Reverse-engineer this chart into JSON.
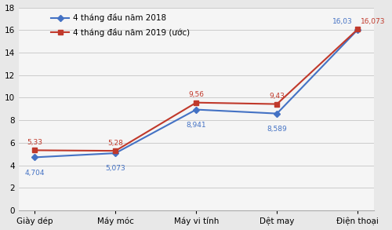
{
  "categories": [
    "Giày dép",
    "Máy móc",
    "Máy vi tính",
    "Dệt may",
    "Điện thoại"
  ],
  "series_2018": [
    4.704,
    5.073,
    8.941,
    8.589,
    16.03
  ],
  "series_2019": [
    5.33,
    5.28,
    9.56,
    9.43,
    16.073
  ],
  "labels_2018": [
    "4,704",
    "5,073",
    "8,941",
    "8,589",
    "16,03"
  ],
  "labels_2019": [
    "5,33",
    "5,28",
    "9,56",
    "9,43",
    "16,073"
  ],
  "legend_2018": "4 tháng đầu năm 2018",
  "legend_2019": "4 tháng đầu năm 2019 (ước)",
  "color_2018": "#4472c4",
  "color_2019": "#c0392b",
  "ylim": [
    0,
    18
  ],
  "yticks": [
    0,
    2,
    4,
    6,
    8,
    10,
    12,
    14,
    16,
    18
  ],
  "background_color": "#e8e8e8",
  "plot_bg_color": "#f5f5f5",
  "fontsize_labels": 6.5,
  "fontsize_legend": 7.5,
  "fontsize_ticks": 7.5
}
